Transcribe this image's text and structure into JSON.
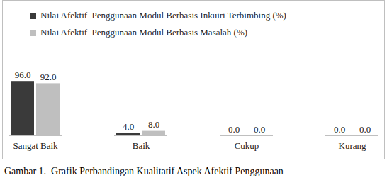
{
  "chart_data": {
    "type": "bar",
    "caption": "Gambar 1.  Grafik Perbandingan Kualitatif Aspek Afektif Penggunaan",
    "categories": [
      "Sangat Baik",
      "Baik",
      "Cukup",
      "Kurang"
    ],
    "series": [
      {
        "name": "Nilai Afektif  Penggunaan Modul Berbasis Inkuiri Terbimbing (%)",
        "color": "#3a3a3a",
        "values": [
          96,
          4,
          0,
          0
        ],
        "value_labels": [
          "96.0",
          "4.0",
          "0.0",
          "0.0"
        ]
      },
      {
        "name": "Nilai Afektif  Penggunaan Modul Berbasis Masalah (%)",
        "color": "#bfbfbf",
        "values": [
          92,
          8,
          0,
          0
        ],
        "value_labels": [
          "92.0",
          "8.0",
          "0.0",
          "0.0"
        ]
      }
    ],
    "ylim": [
      0,
      100
    ],
    "grid": false,
    "legend": "top",
    "data_labels": true,
    "tick_labels": "x"
  }
}
